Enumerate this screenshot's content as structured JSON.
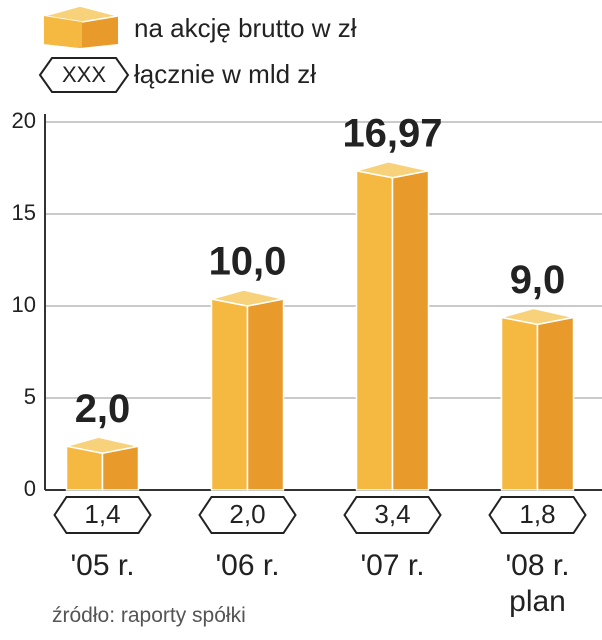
{
  "chart_data": {
    "type": "bar3d",
    "categories": [
      "'05 r.",
      "'06 r.",
      "'07 r.",
      "'08 r.\nplan"
    ],
    "series": [
      {
        "name": "na akcję brutto w zł",
        "color": "#f2ac3a",
        "values": [
          2.0,
          10.0,
          16.97,
          9.0
        ],
        "value_labels": [
          "2,0",
          "10,0",
          "16,97",
          "9,0"
        ]
      },
      {
        "name": "łącznie w mld zł",
        "marker_label": "XXX",
        "values": [
          1.4,
          2.0,
          3.4,
          1.8
        ],
        "value_labels": [
          "1,4",
          "2,0",
          "3,4",
          "1,8"
        ]
      }
    ],
    "ylim": [
      0,
      20
    ],
    "yticks": [
      0,
      5,
      10,
      15,
      20
    ],
    "grid": true,
    "source": "źródło: raporty spółki"
  }
}
